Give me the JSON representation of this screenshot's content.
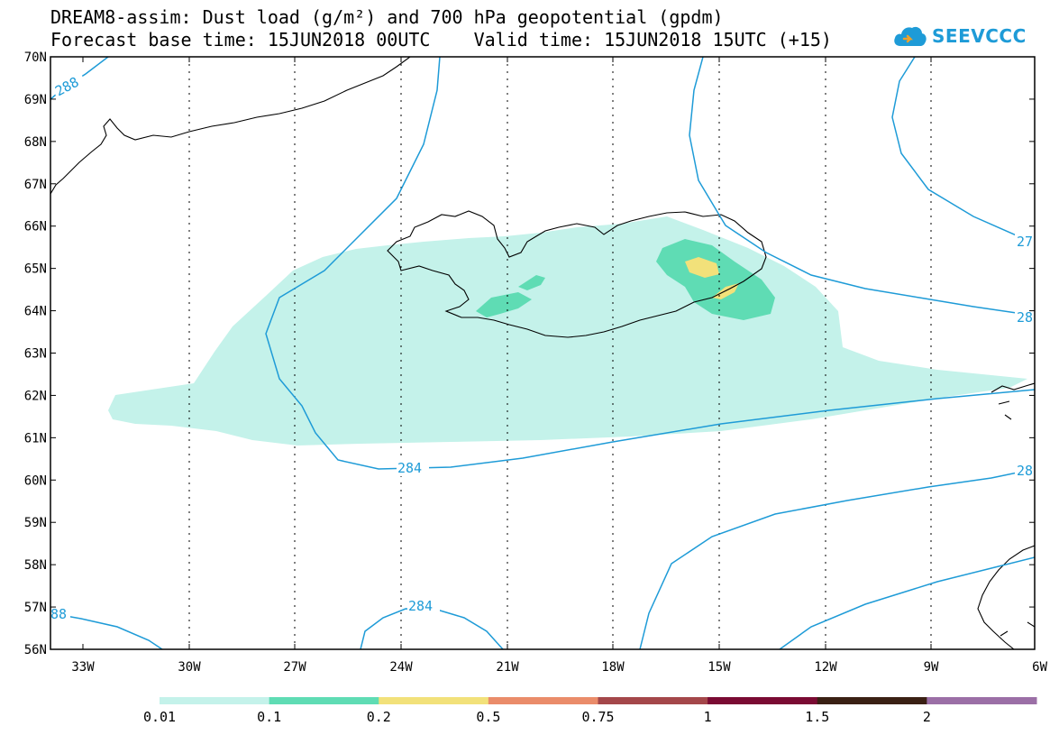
{
  "header": {
    "title_line1": "DREAM8-assim: Dust load (g/m²) and 700 hPa geopotential (gpdm)",
    "title_line2": "Forecast base time: 15JUN2018 00UTC    Valid time: 15JUN2018 15UTC (+15)"
  },
  "logo": {
    "text": "SEEVCCC",
    "icon": "cloud-icon"
  },
  "map": {
    "lat_labels": [
      "70N",
      "69N",
      "68N",
      "67N",
      "66N",
      "65N",
      "64N",
      "63N",
      "62N",
      "61N",
      "60N",
      "59N",
      "58N",
      "57N",
      "56N"
    ],
    "lon_labels": [
      "33W",
      "30W",
      "27W",
      "24W",
      "21W",
      "18W",
      "15W",
      "12W",
      "9W",
      "6W"
    ],
    "contour_labels": [
      "288",
      "284",
      "284",
      "27",
      "28",
      "28",
      "88"
    ],
    "contour_color": "#1e9bd7",
    "gridline_style": "dotted"
  },
  "colorbar": {
    "labels": [
      "0.01",
      "0.1",
      "0.2",
      "0.5",
      "0.75",
      "1",
      "1.5",
      "2"
    ],
    "colors": [
      "#c4f2ea",
      "#5fdcb4",
      "#f2e17a",
      "#ea8c6a",
      "#a4474a",
      "#7a0b33",
      "#3a2014",
      "#9b6fa6"
    ]
  }
}
